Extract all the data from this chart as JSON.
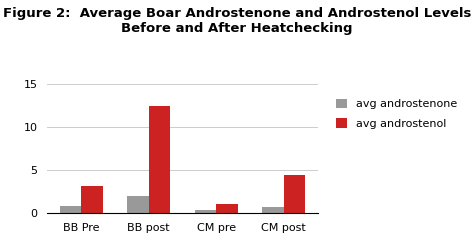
{
  "title_line1": "Figure 2:  Average Boar Androstenone and Androstenol Levels",
  "title_line2": "Before and After Heatchecking",
  "categories": [
    "BB Pre",
    "BB post",
    "CM pre",
    "CM post"
  ],
  "avg_androstenone": [
    0.8,
    2.0,
    0.35,
    0.75
  ],
  "avg_androstenol": [
    3.2,
    12.5,
    1.05,
    4.5
  ],
  "androstenone_color": "#999999",
  "androstenol_color": "#cc2222",
  "ylim": [
    0,
    15
  ],
  "yticks": [
    0,
    5,
    10,
    15
  ],
  "legend_labels": [
    "avg androstenone",
    "avg androstenol"
  ],
  "bar_width": 0.32,
  "background_color": "#ffffff",
  "title_fontsize": 9.5,
  "tick_fontsize": 8,
  "legend_fontsize": 8
}
